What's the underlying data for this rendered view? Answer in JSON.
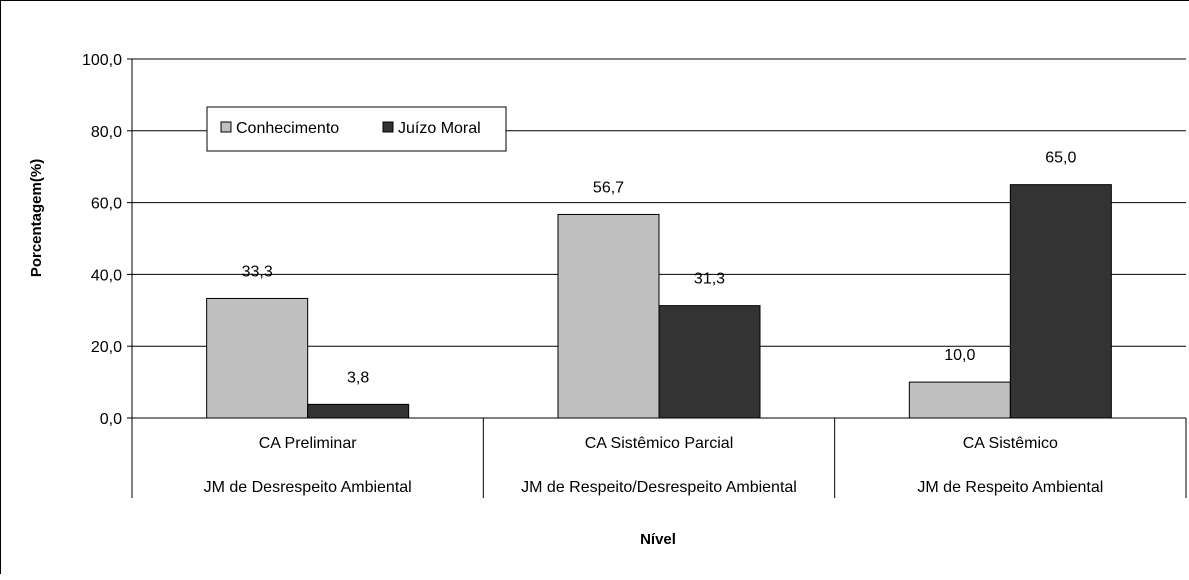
{
  "chart_data": {
    "type": "bar",
    "categories": [
      [
        "CA Preliminar",
        "JM de Desrespeito Ambiental"
      ],
      [
        "CA Sistêmico Parcial",
        "JM de Respeito/Desrespeito Ambiental"
      ],
      [
        "CA Sistêmico",
        "JM de Respeito Ambiental"
      ]
    ],
    "series": [
      {
        "name": "Conhecimento",
        "values": [
          33.3,
          56.7,
          10.0
        ],
        "labels": [
          "33,3",
          "56,7",
          "10,0"
        ],
        "color": "#c0c0c0"
      },
      {
        "name": "Juízo Moral",
        "values": [
          3.8,
          31.3,
          65.0
        ],
        "labels": [
          "3,8",
          "31,3",
          "65,0"
        ],
        "color": "#333333"
      }
    ],
    "xlabel": "Nível",
    "ylabel": "Porcentagem(%)",
    "ylim": [
      0,
      100
    ],
    "yticks": [
      0,
      20,
      40,
      60,
      80,
      100
    ],
    "ytick_labels": [
      "0,0",
      "20,0",
      "40,0",
      "60,0",
      "80,0",
      "100,0"
    ],
    "grid": true,
    "legend": "top-left"
  }
}
